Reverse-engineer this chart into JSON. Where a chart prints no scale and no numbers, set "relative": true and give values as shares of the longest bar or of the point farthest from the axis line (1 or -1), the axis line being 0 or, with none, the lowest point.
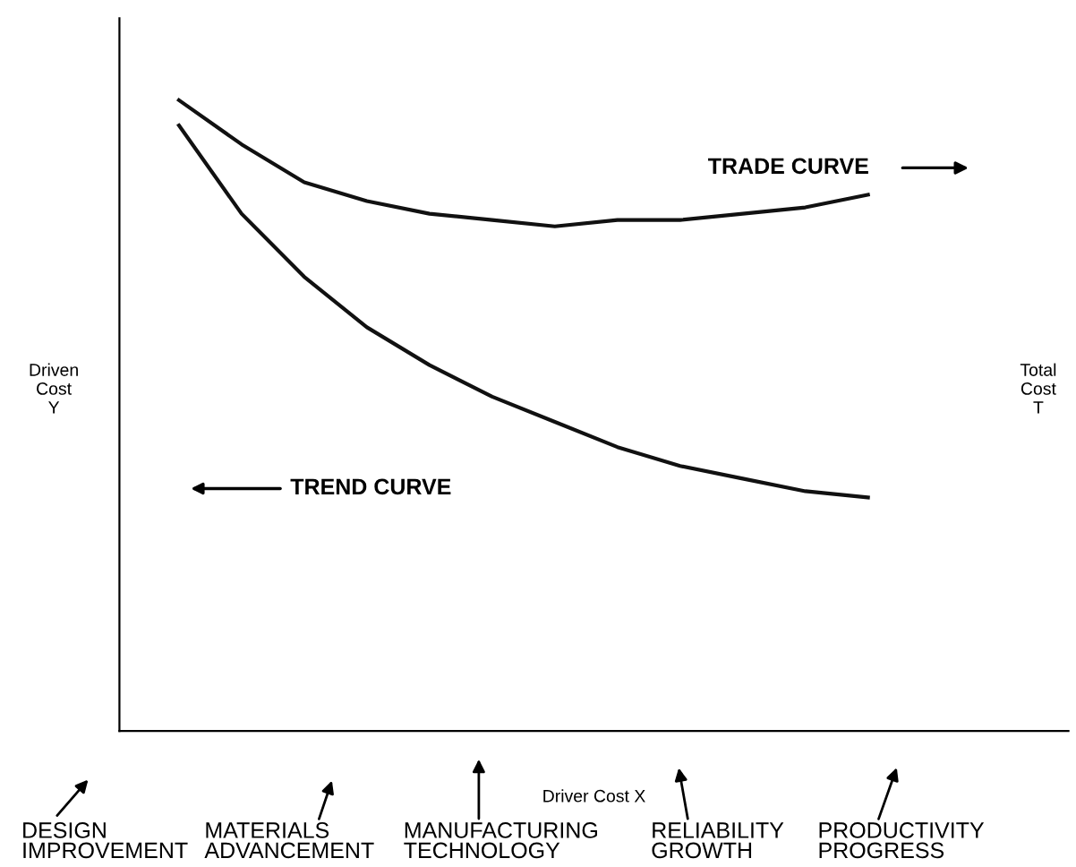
{
  "chart_data": {
    "type": "line",
    "relative": true,
    "xlabel": "Driver Cost X",
    "ylabel": "Driven Cost Y",
    "categories": [
      null,
      null,
      null,
      null,
      null,
      null,
      null,
      null,
      null,
      null,
      null,
      null
    ],
    "series": [
      {
        "color": "#111111",
        "values": [
          1,
          0.93,
          0.87,
          0.84,
          0.82,
          0.81,
          0.8,
          0.81,
          0.81,
          0.82,
          0.83,
          0.85
        ]
      },
      {
        "color": "#111111",
        "values": [
          0.96,
          0.82,
          0.72,
          0.64,
          0.58,
          0.53,
          0.49,
          0.45,
          0.42,
          0.4,
          0.38,
          0.37
        ]
      }
    ],
    "annotations": [
      "TRADE CURVE",
      "TREND CURVE",
      "DESIGN IMPROVEMENT",
      "MATERIALS ADVANCEMENT",
      "MANUFACTURING TECHNOLOGY",
      "RELIABILITY GROWTH",
      "PRODUCTIVITY PROGRESS",
      "Total Cost T"
    ],
    "grid": false,
    "legend": false,
    "marker": "none",
    "line_style": "solid"
  }
}
